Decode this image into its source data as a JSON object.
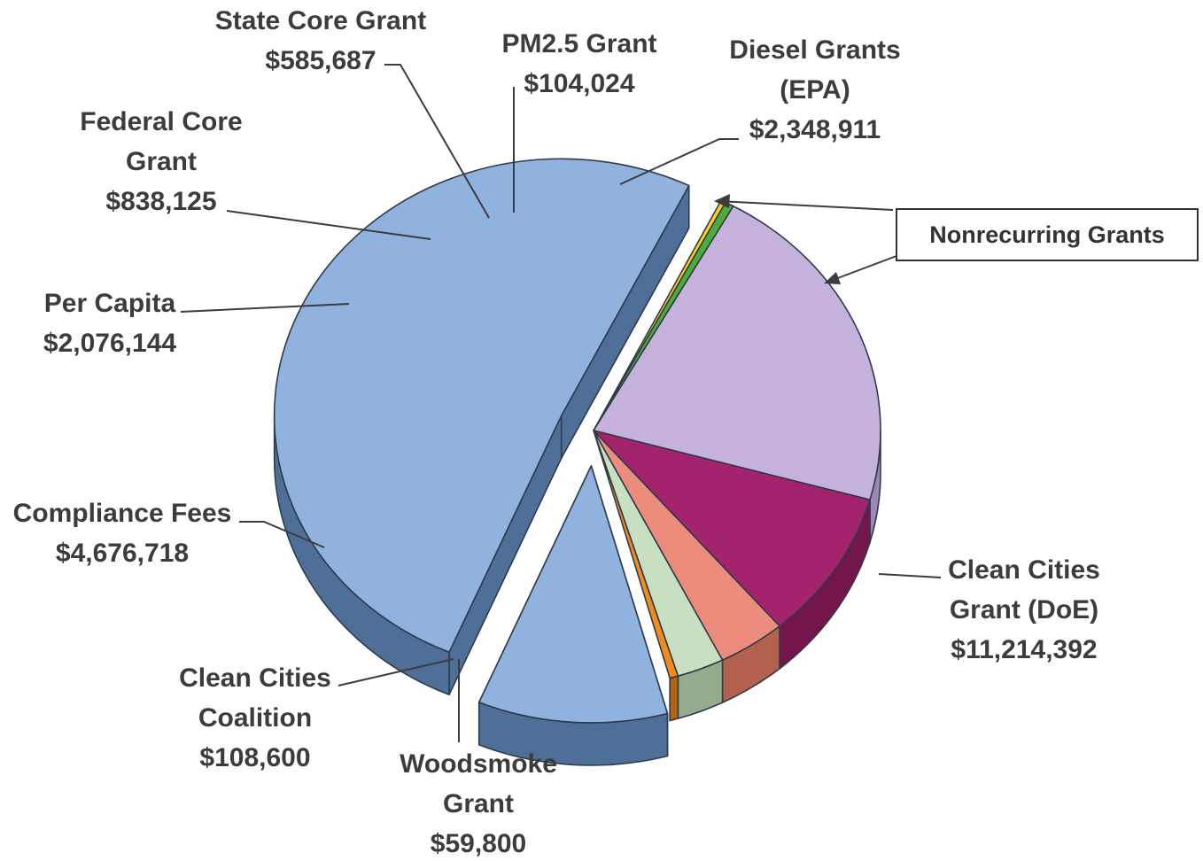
{
  "chart_data": {
    "type": "pie",
    "title": "",
    "slices": [
      {
        "name": "Clean Cities Grant (DoE)",
        "label_lines": [
          "Clean Cities",
          "Grant (DoE)"
        ],
        "value_label": "$11,214,392",
        "value": 11214392,
        "color": "#8fb2de",
        "side_color": "#4e6f98",
        "exploded": true
      },
      {
        "name": "Woodsmoke Grant",
        "label_lines": [
          "Woodsmoke",
          "Grant"
        ],
        "value_label": "$59,800",
        "value": 59800,
        "color": "#ffd21a",
        "side_color": "#c9a000"
      },
      {
        "name": "Clean Cities Coalition",
        "label_lines": [
          "Clean Cities",
          "Coalition"
        ],
        "value_label": "$108,600",
        "value": 108600,
        "color": "#4bad3b",
        "side_color": "#2f7e24"
      },
      {
        "name": "Compliance Fees",
        "label_lines": [
          "Compliance Fees"
        ],
        "value_label": "$4,676,718",
        "value": 4676718,
        "color": "#c4b1dc",
        "side_color": "#9d88b9"
      },
      {
        "name": "Per Capita",
        "label_lines": [
          "Per Capita"
        ],
        "value_label": "$2,076,144",
        "value": 2076144,
        "color": "#a3236c",
        "side_color": "#74154c"
      },
      {
        "name": "Federal Core Grant",
        "label_lines": [
          "Federal Core",
          "Grant"
        ],
        "value_label": "$838,125",
        "value": 838125,
        "color": "#ec8c7c",
        "side_color": "#b4604f"
      },
      {
        "name": "State Core Grant",
        "label_lines": [
          "State Core Grant"
        ],
        "value_label": "$585,687",
        "value": 585687,
        "color": "#c8dfc0",
        "side_color": "#95ac8c"
      },
      {
        "name": "PM2.5 Grant",
        "label_lines": [
          "PM2.5 Grant"
        ],
        "value_label": "$104,024",
        "value": 104024,
        "color": "#f28a1c",
        "side_color": "#b8620b"
      },
      {
        "name": "Diesel Grants (EPA)",
        "label_lines": [
          "Diesel Grants",
          "(EPA)"
        ],
        "value_label": "$2,348,911",
        "value": 2348911,
        "color": "#8fb2de",
        "side_color": "#4e6f98",
        "exploded": true
      }
    ],
    "callout": {
      "text": "Nonrecurring Grants",
      "targets": [
        "Diesel Grants (EPA)",
        "Clean Cities Grant (DoE)"
      ]
    }
  }
}
